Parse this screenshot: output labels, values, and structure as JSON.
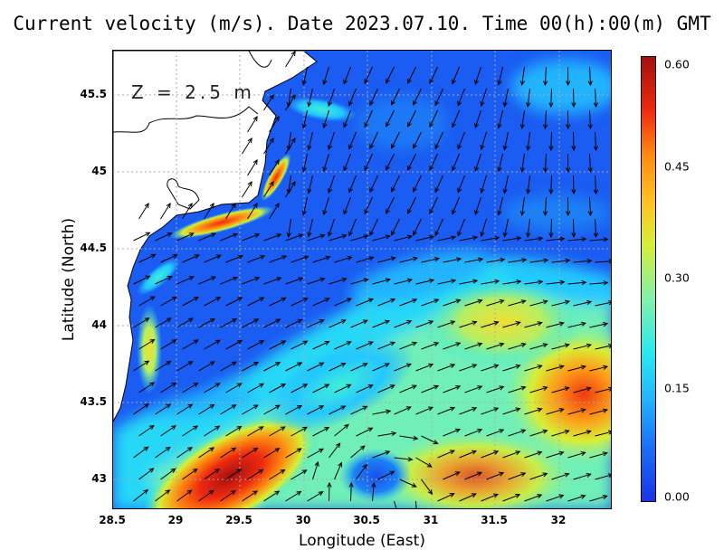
{
  "title": "Current velocity (m/s). Date 2023.07.10. Time 00(h):00(m) GMT",
  "depth_label": "Z = 2.5 m",
  "x_axis": {
    "label": "Longitude (East)",
    "ticks": [
      "28.5",
      "29",
      "29.5",
      "30",
      "30.5",
      "31",
      "31.5",
      "32"
    ],
    "range": [
      28.5,
      32.42
    ]
  },
  "y_axis": {
    "label": "Latitude (North)",
    "ticks": [
      "43",
      "43.5",
      "44",
      "44.5",
      "45",
      "45.5"
    ],
    "range": [
      42.8,
      45.78
    ]
  },
  "colorbar": {
    "ticks": [
      "0.00",
      "0.15",
      "0.30",
      "0.45",
      "0.60"
    ],
    "range": [
      0,
      0.6
    ],
    "colors": [
      "#1a34e6",
      "#1b6ff5",
      "#22b4ff",
      "#27e8f0",
      "#7ff0b0",
      "#d8ee35",
      "#ffc020",
      "#ff8a10",
      "#ee2a10",
      "#a41010"
    ]
  },
  "grid": "dotted",
  "colors": {
    "land_fill": "#ffffff",
    "coastline": "#000000",
    "arrow": "#000000"
  }
}
